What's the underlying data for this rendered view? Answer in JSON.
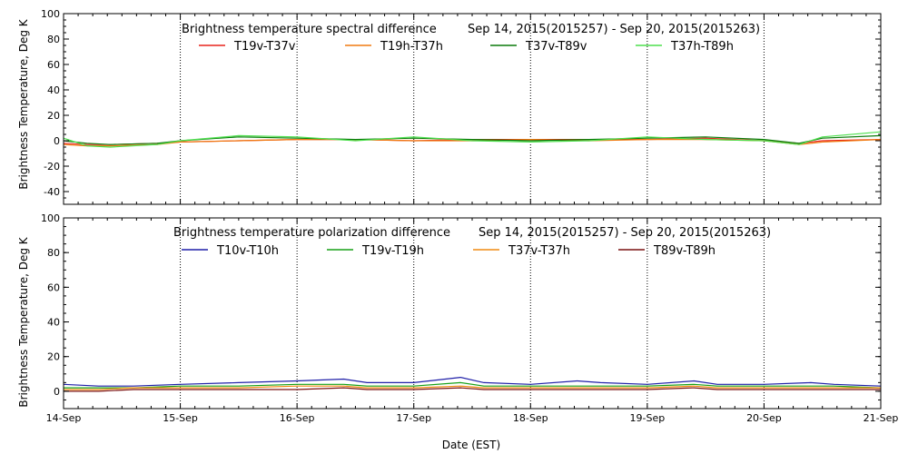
{
  "chart_data": [
    {
      "type": "line",
      "title": "Brightness temperature spectral difference",
      "date_range": "Sep 14, 2015(2015257) - Sep 20, 2015(2015263)",
      "ylabel": "Brightness Temperature, Deg K",
      "ylim": [
        -50,
        100
      ],
      "yticks": [
        -40,
        -20,
        0,
        20,
        40,
        60,
        80,
        100
      ],
      "xlim": [
        0,
        7
      ],
      "x_gridlines": [
        1,
        2,
        3,
        4,
        5,
        6
      ],
      "series": [
        {
          "name": "T19v-T37v",
          "color": "#e8231c",
          "x": [
            0,
            0.2,
            0.4,
            0.8,
            1.0,
            1.5,
            2.0,
            2.5,
            3.0,
            3.5,
            4.0,
            4.5,
            5.0,
            5.5,
            6.0,
            6.3,
            6.5,
            7.0
          ],
          "y": [
            -2,
            -3,
            -3,
            -2,
            -1,
            0,
            1,
            1,
            0,
            1,
            1,
            1,
            1,
            2,
            0,
            -2,
            0,
            1
          ]
        },
        {
          "name": "T19h-T37h",
          "color": "#f07a10",
          "x": [
            0,
            0.2,
            0.4,
            0.8,
            1.0,
            1.5,
            2.0,
            2.5,
            3.0,
            3.5,
            4.0,
            4.5,
            5.0,
            5.5,
            6.0,
            6.3,
            6.5,
            7.0
          ],
          "y": [
            -3,
            -4,
            -4,
            -3,
            -1,
            0,
            1,
            1,
            0,
            0,
            1,
            0,
            1,
            1,
            0,
            -3,
            -1,
            1
          ]
        },
        {
          "name": "T37v-T89v",
          "color": "#0a7a0a",
          "x": [
            0,
            0.2,
            0.4,
            0.8,
            1.0,
            1.5,
            2.0,
            2.5,
            3.0,
            3.5,
            4.0,
            4.5,
            5.0,
            5.5,
            6.0,
            6.3,
            6.5,
            7.0
          ],
          "y": [
            0,
            -2,
            -3,
            -2,
            0,
            3,
            2,
            1,
            2,
            1,
            0,
            1,
            2,
            3,
            1,
            -2,
            2,
            4
          ]
        },
        {
          "name": "T37h-T89h",
          "color": "#4ddf4d",
          "x": [
            0,
            0.2,
            0.4,
            0.8,
            1.0,
            1.5,
            2.0,
            2.5,
            3.0,
            3.5,
            4.0,
            4.5,
            5.0,
            5.5,
            6.0,
            6.3,
            6.5,
            7.0
          ],
          "y": [
            2,
            -4,
            -5,
            -3,
            0,
            4,
            3,
            0,
            3,
            0,
            -1,
            0,
            3,
            1,
            0,
            -3,
            3,
            7
          ]
        }
      ]
    },
    {
      "type": "line",
      "title": "Brightness temperature polarization difference",
      "date_range": "Sep 14, 2015(2015257) - Sep 20, 2015(2015263)",
      "ylabel": "Brightness Temperature, Deg K",
      "xlabel": "Date (EST)",
      "ylim": [
        -10,
        100
      ],
      "yticks": [
        0,
        20,
        40,
        60,
        80,
        100
      ],
      "xlim": [
        0,
        7
      ],
      "x_gridlines": [
        1,
        2,
        3,
        4,
        5,
        6
      ],
      "xticks": [
        "14-Sep",
        "15-Sep",
        "16-Sep",
        "17-Sep",
        "18-Sep",
        "19-Sep",
        "20-Sep",
        "21-Sep"
      ],
      "series": [
        {
          "name": "T10v-T10h",
          "color": "#1f1fa8",
          "x": [
            0,
            0.3,
            0.6,
            1.0,
            1.5,
            2.0,
            2.4,
            2.6,
            3.0,
            3.4,
            3.6,
            4.0,
            4.4,
            4.6,
            5.0,
            5.4,
            5.6,
            6.0,
            6.4,
            6.6,
            7.0
          ],
          "y": [
            4,
            3,
            3,
            4,
            5,
            6,
            7,
            5,
            5,
            8,
            5,
            4,
            6,
            5,
            4,
            6,
            4,
            4,
            5,
            4,
            3
          ]
        },
        {
          "name": "T19v-T19h",
          "color": "#16a016",
          "x": [
            0,
            0.3,
            0.6,
            1.0,
            1.5,
            2.0,
            2.4,
            2.6,
            3.0,
            3.4,
            3.6,
            4.0,
            4.4,
            4.6,
            5.0,
            5.4,
            5.6,
            6.0,
            6.4,
            6.6,
            7.0
          ],
          "y": [
            2,
            2,
            2,
            3,
            3,
            4,
            4,
            3,
            3,
            5,
            3,
            3,
            3,
            3,
            3,
            4,
            3,
            3,
            3,
            3,
            2
          ]
        },
        {
          "name": "T37v-T37h",
          "color": "#f08a10",
          "x": [
            0,
            0.3,
            0.6,
            1.0,
            1.5,
            2.0,
            2.4,
            2.6,
            3.0,
            3.4,
            3.6,
            4.0,
            4.4,
            4.6,
            5.0,
            5.4,
            5.6,
            6.0,
            6.4,
            6.6,
            7.0
          ],
          "y": [
            1,
            1,
            2,
            2,
            2,
            3,
            3,
            2,
            2,
            3,
            2,
            2,
            2,
            2,
            2,
            3,
            2,
            2,
            2,
            2,
            2
          ]
        },
        {
          "name": "T89v-T89h",
          "color": "#7a1010",
          "x": [
            0,
            0.3,
            0.6,
            1.0,
            1.5,
            2.0,
            2.4,
            2.6,
            3.0,
            3.4,
            3.6,
            4.0,
            4.4,
            4.6,
            5.0,
            5.4,
            5.6,
            6.0,
            6.4,
            6.6,
            7.0
          ],
          "y": [
            0,
            0,
            1,
            1,
            1,
            1,
            2,
            1,
            1,
            2,
            1,
            1,
            1,
            1,
            1,
            2,
            1,
            1,
            1,
            1,
            1
          ]
        }
      ]
    }
  ]
}
